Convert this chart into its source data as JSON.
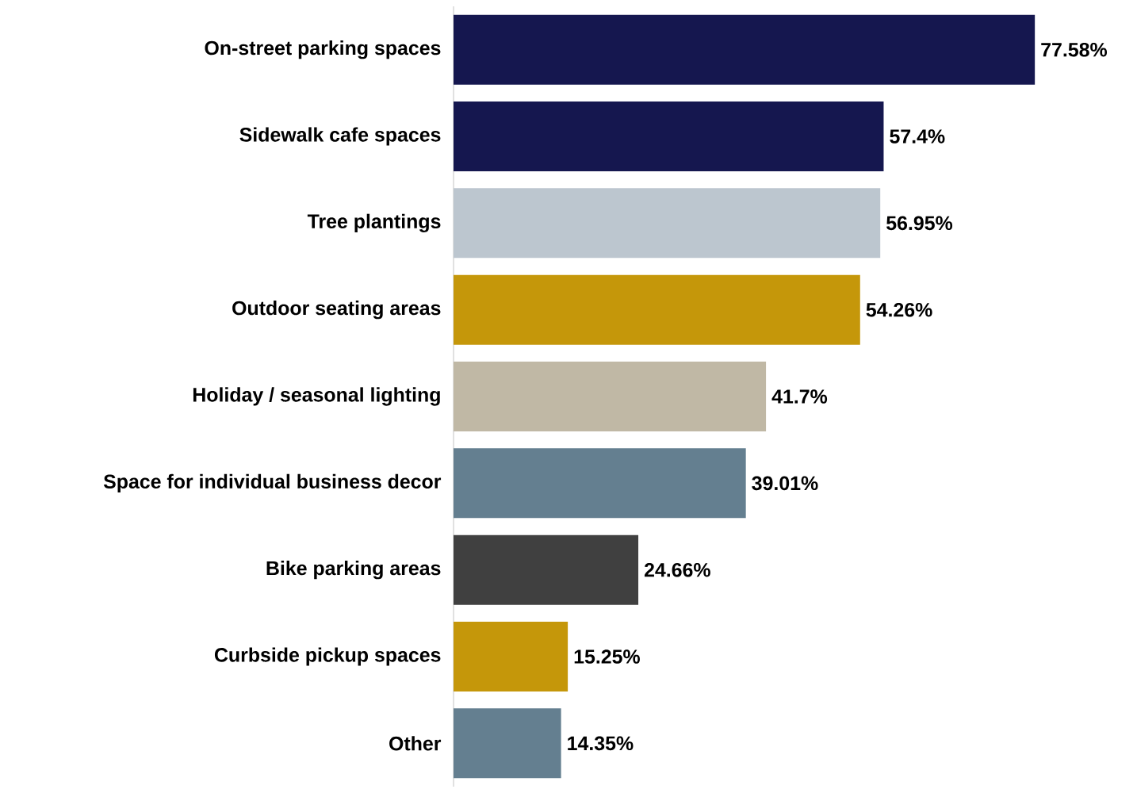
{
  "chart_data": {
    "type": "bar",
    "orientation": "horizontal",
    "categories": [
      "On-street parking spaces",
      "Sidewalk cafe spaces",
      "Tree plantings",
      "Outdoor seating areas",
      "Holiday / seasonal lighting",
      "Space for individual business decor",
      "Bike parking areas",
      "Curbside pickup spaces",
      "Other"
    ],
    "values": [
      77.58,
      57.4,
      56.95,
      54.26,
      41.7,
      39.01,
      24.66,
      15.25,
      14.35
    ],
    "value_labels": [
      "77.58%",
      "57.4%",
      "56.95%",
      "54.26%",
      "41.7%",
      "39.01%",
      "24.66%",
      "15.25%",
      "14.35%"
    ],
    "colors": [
      "#15174f",
      "#15174f",
      "#bcc6cf",
      "#c5970a",
      "#c0b8a5",
      "#647f90",
      "#404040",
      "#c5970a",
      "#647f90"
    ]
  }
}
